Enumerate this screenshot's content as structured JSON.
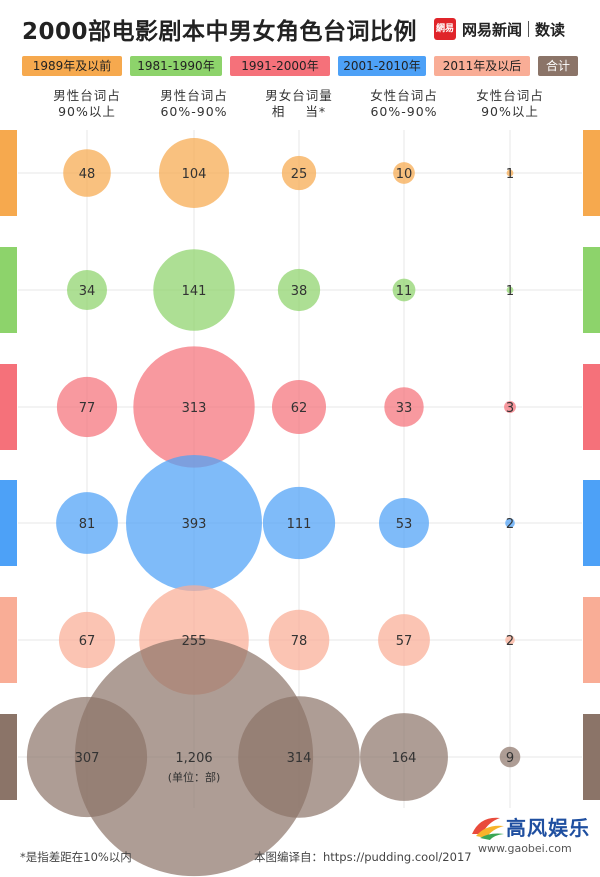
{
  "header": {
    "title": "2000部电影剧本中男女角色台词比例",
    "brand_logo": "網易",
    "brand_name": "网易新闻",
    "brand_sub": "数读"
  },
  "legend": [
    {
      "label": "1989年及以前",
      "color": "#f6a94e",
      "text_color": "#222"
    },
    {
      "label": "1981-1990年",
      "color": "#8dd36b",
      "text_color": "#222"
    },
    {
      "label": "1991-2000年",
      "color": "#f5717a",
      "text_color": "#222"
    },
    {
      "label": "2001-2010年",
      "color": "#4da1f7",
      "text_color": "#222"
    },
    {
      "label": "2011年及以后",
      "color": "#f9ad96",
      "text_color": "#222"
    },
    {
      "label": "合计",
      "color": "#8b7468",
      "text_color": "#ffffff"
    }
  ],
  "columns": [
    {
      "line1": "男性台词占",
      "line2": "90%以上"
    },
    {
      "line1": "男性台词占",
      "line2": "60%-90%"
    },
    {
      "line1": "男女台词量",
      "line2": "相    当*"
    },
    {
      "line1": "女性台词占",
      "line2": "60%-90%"
    },
    {
      "line1": "女性台词占",
      "line2": "90%以上"
    }
  ],
  "chart_data": {
    "type": "bubble",
    "categories": [
      "男性台词占90%以上",
      "男性台词占60%-90%",
      "男女台词量相当*",
      "女性台词占60%-90%",
      "女性台词占90%以上"
    ],
    "series": [
      {
        "name": "1989年及以前",
        "color": "#f6a94e",
        "values": [
          48,
          104,
          25,
          10,
          1
        ]
      },
      {
        "name": "1981-1990年",
        "color": "#8dd36b",
        "values": [
          34,
          141,
          38,
          11,
          1
        ]
      },
      {
        "name": "1991-2000年",
        "color": "#f5717a",
        "values": [
          77,
          313,
          62,
          33,
          3
        ]
      },
      {
        "name": "2001-2010年",
        "color": "#4da1f7",
        "values": [
          81,
          393,
          111,
          53,
          2
        ]
      },
      {
        "name": "2011年及以后",
        "color": "#f9ad96",
        "values": [
          67,
          255,
          78,
          57,
          2
        ]
      },
      {
        "name": "合计",
        "color": "#8b7468",
        "values": [
          307,
          1206,
          314,
          164,
          9
        ]
      }
    ],
    "value_labels": [
      [
        "48",
        "104",
        "25",
        "10",
        "1"
      ],
      [
        "34",
        "141",
        "38",
        "11",
        "1"
      ],
      [
        "77",
        "313",
        "62",
        "33",
        "3"
      ],
      [
        "81",
        "393",
        "111",
        "53",
        "2"
      ],
      [
        "67",
        "255",
        "78",
        "57",
        "2"
      ],
      [
        "307",
        "1,206",
        "314",
        "164",
        "9"
      ]
    ],
    "unit_note": "(单位：部)",
    "size_encoding": "area proportional to value"
  },
  "footnote": "*是指差距在10%以内",
  "source": "本图编译自：https://pudding.cool/2017",
  "watermark": {
    "title": "高风娱乐",
    "url": "www.gaobei.com"
  }
}
